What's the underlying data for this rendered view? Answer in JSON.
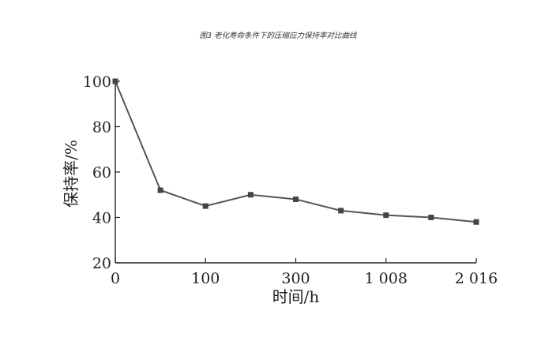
{
  "chart_data": {
    "type": "line",
    "title": "图3 老化寿命条件下的压缩应力保持率对比曲线",
    "xlabel": "时间/h",
    "ylabel": "保持率/%",
    "x_tick_labels": [
      "0",
      "100",
      "300",
      "1 008",
      "2 016"
    ],
    "y_ticks": [
      20,
      40,
      60,
      80,
      100
    ],
    "ylim": [
      20,
      100
    ],
    "grid": false,
    "series": [
      {
        "values": [
          100,
          52,
          45,
          50,
          48,
          43,
          41,
          40,
          38
        ],
        "color": "#555555",
        "marker": "square"
      }
    ]
  }
}
